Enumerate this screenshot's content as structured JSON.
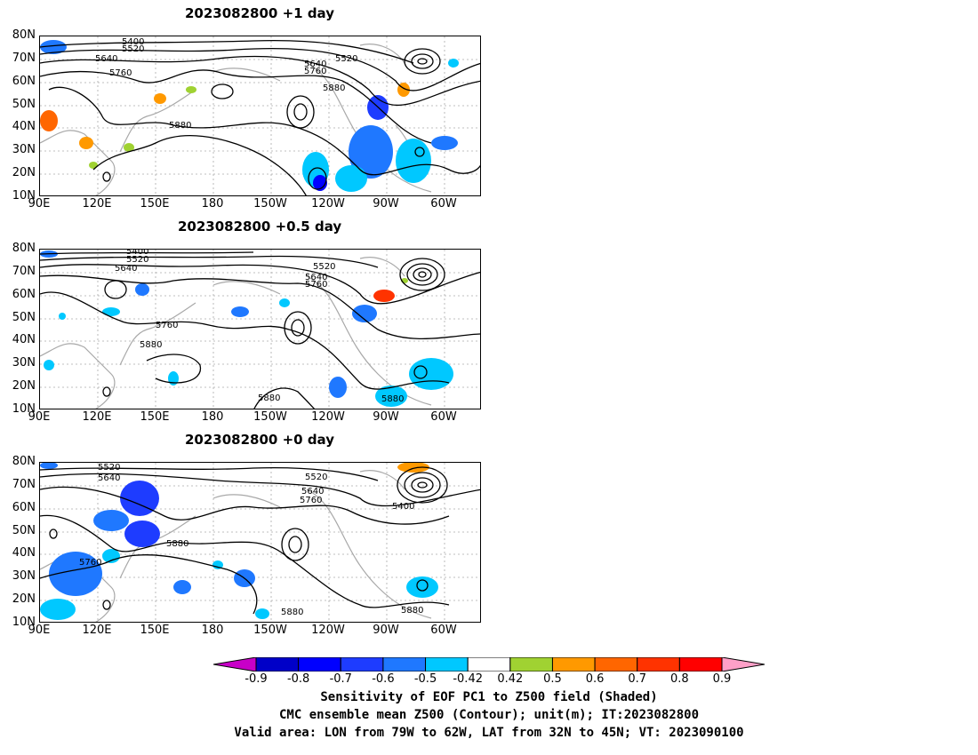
{
  "panels": [
    {
      "title": "2023082800  +1 day"
    },
    {
      "title": "2023082800  +0.5 day"
    },
    {
      "title": "2023082800  +0 day"
    }
  ],
  "lat_ticks": [
    "80N",
    "70N",
    "60N",
    "50N",
    "40N",
    "30N",
    "20N",
    "10N"
  ],
  "lon_ticks": [
    "90E",
    "120E",
    "150E",
    "180",
    "150W",
    "120W",
    "90W",
    "60W"
  ],
  "contour_labels": {
    "p1": [
      "5400",
      "5520",
      "5640",
      "5760",
      "5880",
      "5520",
      "5640",
      "5760",
      "5880"
    ],
    "p2": [
      "5400",
      "5520",
      "5640",
      "5520",
      "5640",
      "5760",
      "5760",
      "5880",
      "5880",
      "5880"
    ],
    "p3": [
      "5520",
      "5640",
      "5880",
      "5760",
      "5520",
      "5640",
      "5760",
      "5400",
      "5880",
      "5880"
    ]
  },
  "colorbar": {
    "labels": [
      "-0.9",
      "-0.8",
      "-0.7",
      "-0.6",
      "-0.5",
      "-0.42",
      "0.42",
      "0.5",
      "0.6",
      "0.7",
      "0.8",
      "0.9"
    ],
    "colors": [
      "#0000c8",
      "#0000ff",
      "#1e3cff",
      "#1f78ff",
      "#00c8ff",
      "#ffffff",
      "#a0d232",
      "#ff9900",
      "#ff6600",
      "#ff3300",
      "#ff0000"
    ],
    "low_extend": "#c800c8",
    "high_extend": "#ffa0c8"
  },
  "caption": {
    "line1": "Sensitivity of EOF PC1 to Z500 field (Shaded)",
    "line2": "CMC ensemble mean Z500 (Contour); unit(m); IT:2023082800",
    "line3": "Valid area: LON from 79W to 62W, LAT from 32N to 45N; VT: 2023090100"
  }
}
